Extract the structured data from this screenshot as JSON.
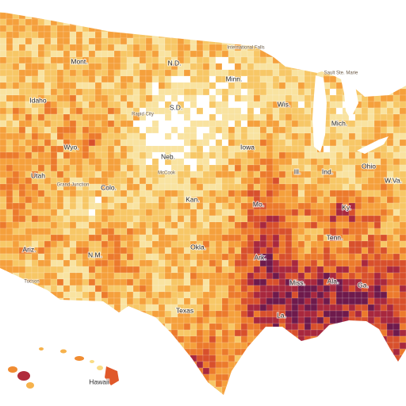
{
  "map": {
    "state_labels": [
      "Idaho",
      "Mont.",
      "N.D.",
      "Minn.",
      "Wis.",
      "Mich.",
      "S.D.",
      "Wyo.",
      "Neb.",
      "Iowa",
      "Ill.",
      "Ind.",
      "Ohio",
      "Utah",
      "Colo.",
      "Kan.",
      "Mo.",
      "Ky.",
      "W.Va.",
      "Ariz.",
      "N.M.",
      "Okla.",
      "Ark.",
      "Tenn.",
      "Miss.",
      "Ala.",
      "Ga.",
      "La.",
      "Texas",
      "Hawaii"
    ],
    "city_labels": [
      "International Falls",
      "Sault Ste. Marie",
      "Rapid City",
      "Grand Junction",
      "McCook",
      "Tucson"
    ]
  }
}
